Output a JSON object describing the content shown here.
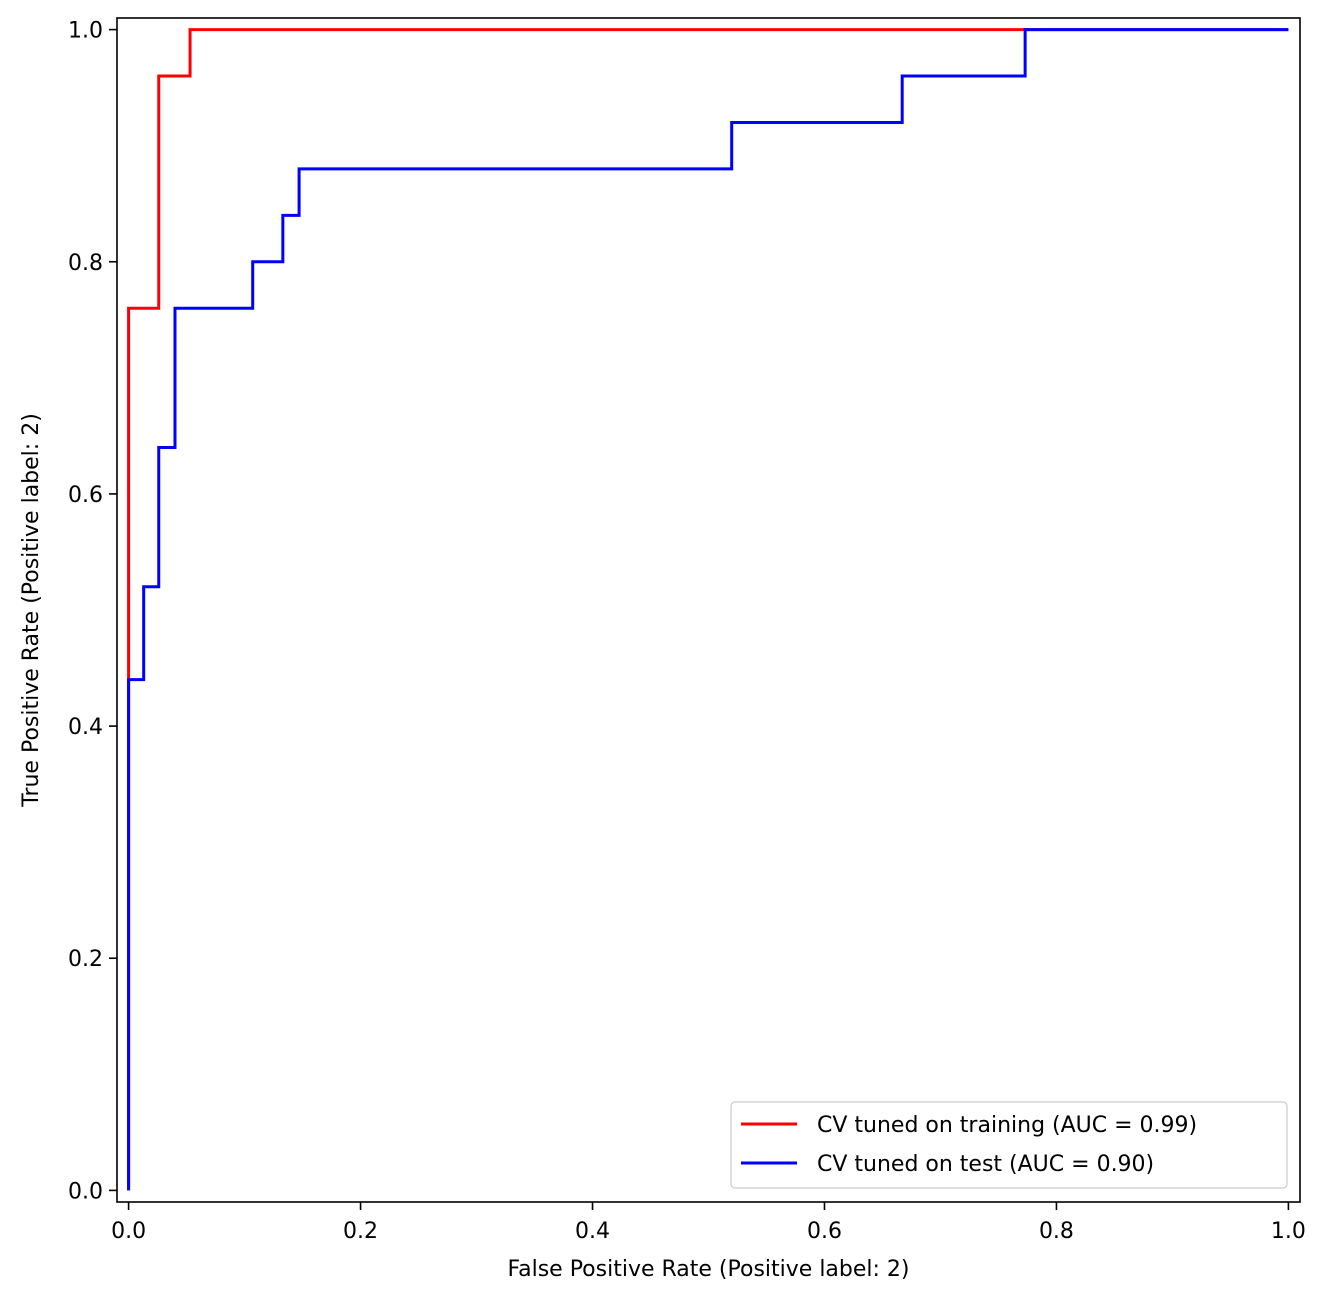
{
  "chart_data": {
    "type": "line",
    "title": "",
    "xlabel": "False Positive Rate (Positive label: 2)",
    "ylabel": "True Positive Rate (Positive label: 2)",
    "xlim": [
      -0.01,
      1.01
    ],
    "ylim": [
      -0.01,
      1.01
    ],
    "xticks": [
      "0.0",
      "0.2",
      "0.4",
      "0.6",
      "0.8",
      "1.0"
    ],
    "yticks": [
      "0.0",
      "0.2",
      "0.4",
      "0.6",
      "0.8",
      "1.0"
    ],
    "grid": false,
    "legend_position": "lower-right",
    "series": [
      {
        "name": "CV tuned on training (AUC = 0.99)",
        "color": "#ff0000",
        "x": [
          0.0,
          0.0,
          0.0,
          0.0,
          0.026,
          0.026,
          0.053,
          0.053,
          1.0
        ],
        "y": [
          0.0,
          0.44,
          0.44,
          0.76,
          0.76,
          0.96,
          0.96,
          1.0,
          1.0
        ]
      },
      {
        "name": "CV tuned on test (AUC = 0.90)",
        "color": "#0000ff",
        "x": [
          0.0,
          0.0,
          0.013,
          0.013,
          0.026,
          0.026,
          0.04,
          0.04,
          0.107,
          0.107,
          0.133,
          0.133,
          0.147,
          0.147,
          0.52,
          0.52,
          0.667,
          0.667,
          0.773,
          0.773,
          1.0
        ],
        "y": [
          0.0,
          0.44,
          0.44,
          0.52,
          0.52,
          0.64,
          0.64,
          0.76,
          0.76,
          0.8,
          0.8,
          0.84,
          0.84,
          0.88,
          0.88,
          0.92,
          0.92,
          0.96,
          0.96,
          1.0,
          1.0
        ]
      }
    ]
  }
}
